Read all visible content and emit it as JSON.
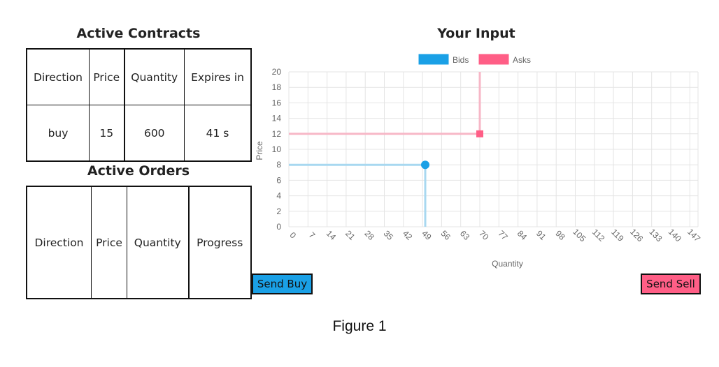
{
  "contracts": {
    "title": "Active Contracts",
    "headers": [
      "Direction",
      "Price",
      "Quantity",
      "Expires in"
    ],
    "rows": [
      [
        "buy",
        "15",
        "600",
        "41 s"
      ]
    ]
  },
  "orders": {
    "title": "Active Orders",
    "headers": [
      "Direction",
      "Price",
      "Quantity",
      "Progress"
    ]
  },
  "input": {
    "title": "Your Input"
  },
  "buttons": {
    "send_buy": "Send Buy",
    "send_sell": "Send Sell"
  },
  "caption": "Figure 1",
  "colors": {
    "bids": "#1aa0e6",
    "asks": "#ff5e86",
    "bids_line": "#a8d8f0",
    "asks_line": "#f7b7c7"
  },
  "chart_data": {
    "type": "line",
    "xlabel": "Quantity",
    "ylabel": "Price",
    "xlim": [
      0,
      150
    ],
    "ylim": [
      0,
      20
    ],
    "x_ticks": [
      0,
      7,
      14,
      21,
      28,
      35,
      42,
      49,
      56,
      63,
      70,
      77,
      84,
      91,
      98,
      105,
      112,
      119,
      126,
      133,
      140,
      147
    ],
    "y_ticks": [
      0,
      2,
      4,
      6,
      8,
      10,
      12,
      14,
      16,
      18,
      20
    ],
    "legend_position": "top",
    "grid": true,
    "series": [
      {
        "name": "Bids",
        "marker": "circle",
        "point": {
          "x": 50,
          "y": 8
        }
      },
      {
        "name": "Asks",
        "marker": "square",
        "point": {
          "x": 70,
          "y": 12
        }
      }
    ]
  }
}
